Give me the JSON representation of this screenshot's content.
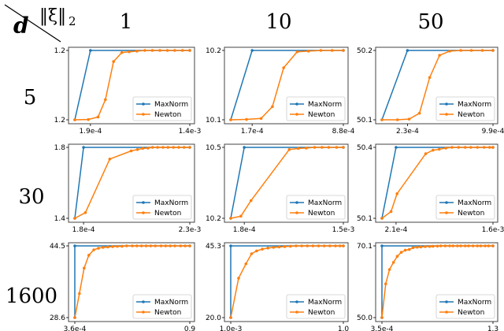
{
  "corner": {
    "row_label": "d",
    "col_label": "‖ξ‖",
    "col_label_sub": "2"
  },
  "columns": [
    "1",
    "10",
    "50"
  ],
  "rows": [
    "5",
    "30",
    "1600"
  ],
  "chart_data": {
    "type": "line",
    "title": "",
    "xlabel": "",
    "ylabel": "",
    "grid": false,
    "legend_placement": "bottom-right",
    "y_scale_note": "y values normalized 0-1 between the min and max tick labels; x normalized 0-1 between first data point and last tick",
    "series_names": [
      "MaxNorm",
      "Newton"
    ],
    "colors": {
      "MaxNorm": "#1f77b4",
      "Newton": "#ff7f0e"
    },
    "panels": [
      {
        "row": 0,
        "col": 0,
        "ymin_label": "1.2",
        "ymax_label": "1.2",
        "xticks": [
          "1.9e-4",
          "1.4e-3"
        ],
        "maxnorm": {
          "x": [
            0,
            0.136,
            1
          ],
          "y": [
            0,
            1,
            1
          ]
        },
        "newton": {
          "x": [
            0,
            0.117,
            0.202,
            0.266,
            0.337,
            0.409,
            0.473,
            0.54,
            0.609,
            0.674,
            0.74,
            0.805,
            0.869,
            0.936,
            1
          ],
          "y": [
            0,
            0.004,
            0.04,
            0.29,
            0.84,
            0.97,
            0.98,
            0.99,
            1,
            1,
            1,
            1,
            1,
            1,
            1
          ]
        }
      },
      {
        "row": 0,
        "col": 1,
        "ymin_label": "10.1",
        "ymax_label": "10.2",
        "xticks": [
          "1.7e-4",
          "8.8e-4"
        ],
        "maxnorm": {
          "x": [
            0,
            0.19,
            1
          ],
          "y": [
            0,
            1,
            1
          ]
        },
        "newton": {
          "x": [
            0,
            0.14,
            0.27,
            0.37,
            0.47,
            0.59,
            0.69,
            0.8,
            0.9,
            1
          ],
          "y": [
            0,
            0.005,
            0.02,
            0.19,
            0.75,
            0.98,
            0.99,
            1,
            1,
            1
          ]
        }
      },
      {
        "row": 0,
        "col": 2,
        "ymin_label": "50.1",
        "ymax_label": "50.2",
        "xticks": [
          "2.3e-4",
          "9.9e-4"
        ],
        "maxnorm": {
          "x": [
            0,
            0.23,
            1
          ],
          "y": [
            0,
            1,
            1
          ]
        },
        "newton": {
          "x": [
            0,
            0.14,
            0.245,
            0.338,
            0.43,
            0.519,
            0.61,
            0.71,
            0.805,
            0.904,
            1
          ],
          "y": [
            0,
            0,
            0.01,
            0.095,
            0.61,
            0.93,
            0.99,
            1,
            1,
            1,
            1
          ]
        }
      },
      {
        "row": 1,
        "col": 0,
        "ymin_label": "1.4",
        "ymax_label": "1.8",
        "xticks": [
          "1.8e-4",
          "2.3e-3"
        ],
        "maxnorm": {
          "x": [
            0,
            0.076,
            1
          ],
          "y": [
            0,
            1,
            1
          ]
        },
        "newton": {
          "x": [
            0,
            0.092,
            0.304,
            0.49,
            0.545,
            0.59,
            0.636,
            0.675,
            0.72,
            0.767,
            0.81,
            0.858,
            0.904,
            0.95,
            1
          ],
          "y": [
            0,
            0.08,
            0.835,
            0.95,
            0.97,
            0.985,
            0.99,
            1,
            1,
            1,
            1,
            1,
            1,
            1,
            1
          ]
        }
      },
      {
        "row": 1,
        "col": 1,
        "ymin_label": "10.2",
        "ymax_label": "10.5",
        "xticks": [
          "1.8e-4",
          "1.5e-3"
        ],
        "maxnorm": {
          "x": [
            0,
            0.12,
            1
          ],
          "y": [
            0,
            1,
            1
          ]
        },
        "newton": {
          "x": [
            0,
            0.09,
            0.18,
            0.52,
            0.6,
            0.67,
            0.745,
            0.81,
            0.87,
            0.94,
            1
          ],
          "y": [
            0,
            0.03,
            0.25,
            0.97,
            0.985,
            0.99,
            1,
            1,
            1,
            1,
            1
          ]
        }
      },
      {
        "row": 1,
        "col": 2,
        "ymin_label": "50.1",
        "ymax_label": "50.4",
        "xticks": [
          "2.1e-4",
          "1.6e-3"
        ],
        "maxnorm": {
          "x": [
            0,
            0.127,
            1
          ],
          "y": [
            0,
            1,
            1
          ]
        },
        "newton": {
          "x": [
            0,
            0.082,
            0.136,
            0.394,
            0.46,
            0.516,
            0.575,
            0.63,
            0.69,
            0.75,
            0.8,
            0.86,
            0.92,
            0.97,
            1
          ],
          "y": [
            0,
            0.095,
            0.346,
            0.91,
            0.96,
            0.973,
            0.99,
            1,
            1,
            1,
            1,
            1,
            1,
            1,
            1
          ]
        }
      },
      {
        "row": 2,
        "col": 0,
        "ymin_label": "28.6",
        "ymax_label": "44.5",
        "xticks": [
          "3.6e-4",
          "0.9"
        ],
        "maxnorm": {
          "x": [
            0,
            0,
            1
          ],
          "y": [
            0,
            1,
            1
          ]
        },
        "newton": {
          "x": [
            0,
            0.04,
            0.081,
            0.122,
            0.165,
            0.205,
            0.246,
            0.287,
            0.329,
            0.37,
            0.41,
            0.45,
            0.5,
            0.54,
            0.58,
            0.62,
            0.66,
            0.7,
            0.75,
            0.79,
            0.83,
            0.87,
            0.92,
            0.96,
            1
          ],
          "y": [
            0,
            0.335,
            0.69,
            0.87,
            0.945,
            0.967,
            0.98,
            0.985,
            0.99,
            0.993,
            0.995,
            1,
            1,
            1,
            1,
            1,
            1,
            1,
            1,
            1,
            1,
            1,
            1,
            1,
            1
          ]
        }
      },
      {
        "row": 2,
        "col": 1,
        "ymin_label": "20.0",
        "ymax_label": "45.3",
        "xticks": [
          "1.0e-3",
          "1.0"
        ],
        "maxnorm": {
          "x": [
            0,
            0,
            1
          ],
          "y": [
            0,
            1,
            1
          ]
        },
        "newton": {
          "x": [
            0,
            0.07,
            0.135,
            0.185,
            0.23,
            0.28,
            0.33,
            0.38,
            0.43,
            0.48,
            0.53,
            0.58,
            0.63,
            0.68,
            0.73,
            0.78,
            0.83,
            0.88,
            0.93,
            0.97,
            1
          ],
          "y": [
            0,
            0.55,
            0.75,
            0.89,
            0.93,
            0.955,
            0.97,
            0.98,
            0.985,
            0.99,
            0.995,
            1,
            1,
            1,
            1,
            1,
            1,
            1,
            1,
            1,
            1
          ]
        }
      },
      {
        "row": 2,
        "col": 2,
        "ymin_label": "50.0",
        "ymax_label": "70.1",
        "xticks": [
          "3.5e-4",
          "1.3"
        ],
        "maxnorm": {
          "x": [
            0,
            0,
            1
          ],
          "y": [
            0,
            1,
            1
          ]
        },
        "newton": {
          "x": [
            0,
            0.034,
            0.068,
            0.104,
            0.138,
            0.174,
            0.21,
            0.246,
            0.28,
            0.318,
            0.35,
            0.39,
            0.43,
            0.46,
            0.5,
            0.53,
            0.57,
            0.61,
            0.64,
            0.68,
            0.71,
            0.75,
            0.78,
            0.82,
            0.86,
            0.89,
            0.93,
            0.96,
            1
          ],
          "y": [
            0,
            0.47,
            0.67,
            0.77,
            0.855,
            0.91,
            0.94,
            0.95,
            0.975,
            0.982,
            0.985,
            0.99,
            0.992,
            0.995,
            0.997,
            1,
            1,
            1,
            1,
            1,
            1,
            1,
            1,
            1,
            1,
            1,
            1,
            1,
            1
          ]
        }
      }
    ]
  }
}
